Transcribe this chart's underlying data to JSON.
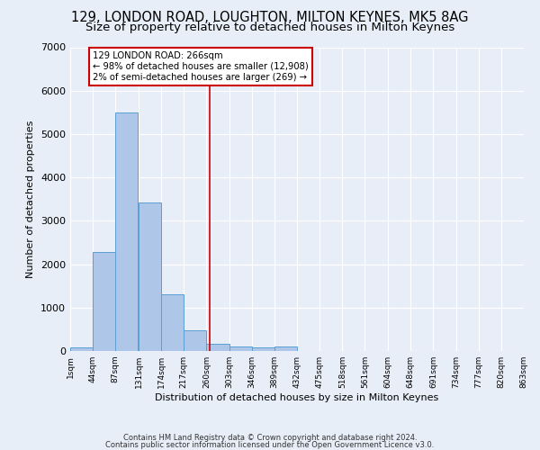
{
  "title1": "129, LONDON ROAD, LOUGHTON, MILTON KEYNES, MK5 8AG",
  "title2": "Size of property relative to detached houses in Milton Keynes",
  "xlabel": "Distribution of detached houses by size in Milton Keynes",
  "ylabel": "Number of detached properties",
  "footnote1": "Contains HM Land Registry data © Crown copyright and database right 2024.",
  "footnote2": "Contains public sector information licensed under the Open Government Licence v3.0.",
  "bin_edges": [
    1,
    44,
    87,
    131,
    174,
    217,
    260,
    303,
    346,
    389,
    432,
    475,
    518,
    561,
    604,
    648,
    691,
    734,
    777,
    820,
    863
  ],
  "bar_heights": [
    75,
    2280,
    5500,
    3430,
    1300,
    470,
    170,
    100,
    80,
    100,
    0,
    0,
    0,
    0,
    0,
    0,
    0,
    0,
    0,
    0
  ],
  "bar_color": "#aec6e8",
  "bar_edge_color": "#5a9fd4",
  "property_line_x": 266,
  "property_line_color": "#cc0000",
  "annotation_text": "129 LONDON ROAD: 266sqm\n← 98% of detached houses are smaller (12,908)\n2% of semi-detached houses are larger (269) →",
  "annotation_box_color": "#ffffff",
  "annotation_box_edge": "#cc0000",
  "ylim": [
    0,
    7000
  ],
  "yticks": [
    0,
    1000,
    2000,
    3000,
    4000,
    5000,
    6000,
    7000
  ],
  "bg_color": "#e8eef8",
  "grid_color": "#ffffff",
  "title1_fontsize": 10.5,
  "title2_fontsize": 9.5
}
